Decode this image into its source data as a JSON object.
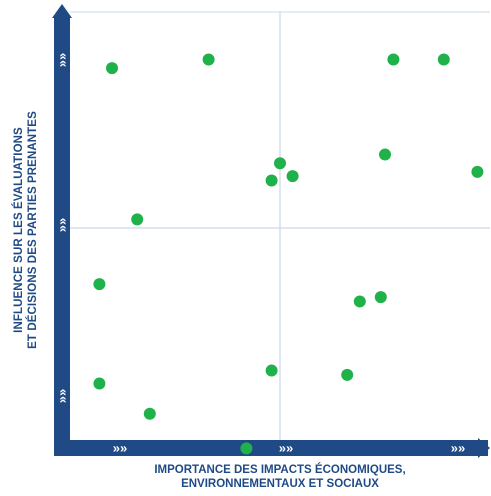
{
  "chart_data": {
    "type": "scatter",
    "title": "",
    "xlabel_lines": [
      "IMPORTANCE DES IMPACTS ÉCONOMIQUES,",
      "ENVIRONNEMENTAUX ET SOCIAUX"
    ],
    "ylabel_lines": [
      "INFLUENCE SUR LES ÉVALUATIONS",
      "ET DÉCISIONS DES PARTIES PRENANTES"
    ],
    "xlim": [
      0,
      1
    ],
    "ylim": [
      0,
      1
    ],
    "quadrant_dividers": {
      "x": 0.5,
      "y": 0.5
    },
    "grid": false,
    "points": [
      {
        "x": 0.1,
        "y": 0.87
      },
      {
        "x": 0.33,
        "y": 0.89
      },
      {
        "x": 0.77,
        "y": 0.89
      },
      {
        "x": 0.89,
        "y": 0.89
      },
      {
        "x": 0.16,
        "y": 0.52
      },
      {
        "x": 0.48,
        "y": 0.61
      },
      {
        "x": 0.5,
        "y": 0.65
      },
      {
        "x": 0.53,
        "y": 0.62
      },
      {
        "x": 0.75,
        "y": 0.67
      },
      {
        "x": 0.97,
        "y": 0.63
      },
      {
        "x": 0.07,
        "y": 0.37
      },
      {
        "x": 0.69,
        "y": 0.33
      },
      {
        "x": 0.74,
        "y": 0.34
      },
      {
        "x": 0.07,
        "y": 0.14
      },
      {
        "x": 0.48,
        "y": 0.17
      },
      {
        "x": 0.66,
        "y": 0.16
      },
      {
        "x": 0.19,
        "y": 0.07
      },
      {
        "x": 0.42,
        "y": -0.01
      }
    ]
  },
  "colors": {
    "axis": "#1f4a86",
    "point": "#1fb24a",
    "divider": "#c9d8ea",
    "label": "#1f4a86"
  },
  "marker_glyphs": {
    "chevrons": "»»"
  }
}
